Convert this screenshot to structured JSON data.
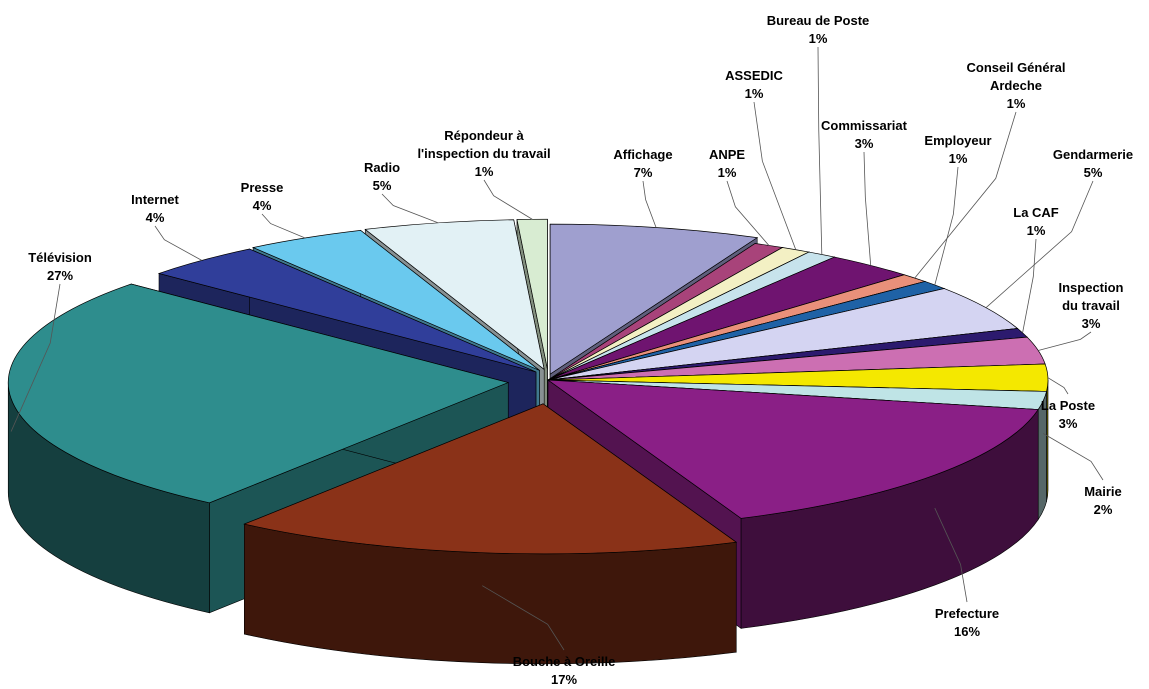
{
  "chart_data": {
    "type": "pie",
    "title": "",
    "slices": [
      {
        "label": "Affichage",
        "value": 7,
        "value_label": "7%",
        "color": "#9f9fcf"
      },
      {
        "label": "ANPE",
        "value": 1,
        "value_label": "1%",
        "color": "#a8437a"
      },
      {
        "label": "ASSEDIC",
        "value": 1,
        "value_label": "1%",
        "color": "#f3f0c4"
      },
      {
        "label": "Bureau de Poste",
        "value": 1,
        "value_label": "1%",
        "color": "#c7e3ec"
      },
      {
        "label": "Commissariat",
        "value": 3,
        "value_label": "3%",
        "color": "#6f1470"
      },
      {
        "label": "Conseil Général Ardeche",
        "value": 1,
        "value_label": "1%",
        "color": "#e9907a"
      },
      {
        "label": "Employeur",
        "value": 1,
        "value_label": "1%",
        "color": "#1f62a6"
      },
      {
        "label": "Gendarmerie",
        "value": 5,
        "value_label": "5%",
        "color": "#d4d4f2"
      },
      {
        "label": "La CAF",
        "value": 1,
        "value_label": "1%",
        "color": "#2c1a6e"
      },
      {
        "label": "Inspection du travail",
        "value": 3,
        "value_label": "3%",
        "color": "#cc6fb2"
      },
      {
        "label": "La Poste",
        "value": 3,
        "value_label": "3%",
        "color": "#f4e800"
      },
      {
        "label": "Mairie",
        "value": 2,
        "value_label": "2%",
        "color": "#bfe4e6"
      },
      {
        "label": "Prefecture",
        "value": 16,
        "value_label": "16%",
        "color": "#8a1f86"
      },
      {
        "label": "Bouche à Oreille",
        "value": 17,
        "value_label": "17%",
        "color": "#8a3218"
      },
      {
        "label": "Télévision",
        "value": 27,
        "value_label": "27%",
        "color": "#2e8d8d"
      },
      {
        "label": "Internet",
        "value": 4,
        "value_label": "4%",
        "color": "#303e9a"
      },
      {
        "label": "Presse",
        "value": 4,
        "value_label": "4%",
        "color": "#6ac9ee"
      },
      {
        "label": "Radio",
        "value": 5,
        "value_label": "5%",
        "color": "#e2f1f5"
      },
      {
        "label": "Répondeur à l'inspection du travail",
        "value": 1,
        "value_label": "1%",
        "color": "#d8ecd2"
      }
    ]
  }
}
